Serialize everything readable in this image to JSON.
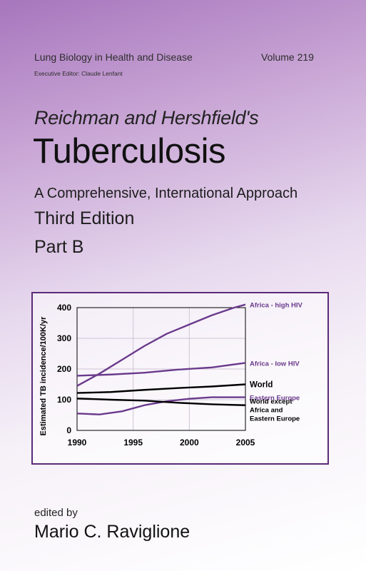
{
  "series_name": "Lung Biology in Health and Disease",
  "volume": "Volume 219",
  "executive_editor": "Executive Editor: Claude Lenfant",
  "authors": "Reichman and Hershfield's",
  "title": "Tuberculosis",
  "subtitle": "A Comprehensive, International Approach",
  "edition": "Third Edition",
  "part": "Part B",
  "edited_by": "edited by",
  "editor": "Mario C. Raviglione",
  "colors": {
    "purple": "#6a3a8c",
    "black": "#000000",
    "frame": "#5c2a78"
  },
  "chart_data": {
    "type": "line",
    "ylabel": "Estimated TB incidence/100K/yr",
    "xlabel": "",
    "xlim": [
      1990,
      2005
    ],
    "ylim": [
      0,
      400
    ],
    "x_ticks": [
      "1990",
      "1995",
      "2000",
      "2005"
    ],
    "y_ticks": [
      "0",
      "100",
      "200",
      "300",
      "400"
    ],
    "grid": "vertical and horizontal",
    "series": [
      {
        "name": "Africa - high HIV",
        "color": "#6a3a8c",
        "x": [
          1990,
          1992,
          1994,
          1996,
          1998,
          2000,
          2002,
          2004,
          2005
        ],
        "y": [
          145,
          185,
          230,
          275,
          315,
          345,
          375,
          400,
          410
        ]
      },
      {
        "name": "Africa - low HIV",
        "color": "#6a3a8c",
        "x": [
          1990,
          1993,
          1996,
          1999,
          2002,
          2005
        ],
        "y": [
          178,
          182,
          188,
          198,
          205,
          220
        ]
      },
      {
        "name": "World",
        "color": "#000000",
        "x": [
          1990,
          1993,
          1996,
          1999,
          2002,
          2005
        ],
        "y": [
          122,
          125,
          132,
          138,
          143,
          150
        ]
      },
      {
        "name": "Eastern Europe",
        "color": "#6a3a8c",
        "x": [
          1990,
          1992,
          1994,
          1996,
          1998,
          2000,
          2002,
          2005
        ],
        "y": [
          55,
          52,
          62,
          82,
          95,
          103,
          108,
          108
        ]
      },
      {
        "name": "World except Africa and Eastern Europe",
        "color": "#000000",
        "x": [
          1990,
          1993,
          1996,
          1999,
          2002,
          2005
        ],
        "y": [
          104,
          100,
          97,
          90,
          85,
          82
        ]
      }
    ],
    "legend_labels": [
      {
        "text": "Africa - high HIV",
        "color": "#6a3a8c",
        "bold": true
      },
      {
        "text": "Africa - low HIV",
        "color": "#6a3a8c",
        "bold": true
      },
      {
        "text": "World",
        "color": "#000000",
        "bold": true
      },
      {
        "text": "Eastern Europe",
        "color": "#6a3a8c",
        "bold": true
      },
      {
        "text": "World except",
        "color": "#000000",
        "bold": true
      },
      {
        "text": "Africa and",
        "color": "#000000",
        "bold": true
      },
      {
        "text": "Eastern Europe",
        "color": "#000000",
        "bold": true
      }
    ]
  }
}
